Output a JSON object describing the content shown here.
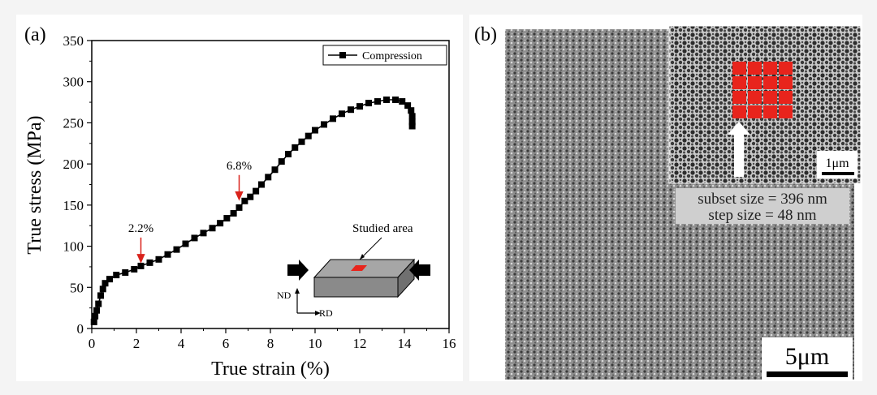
{
  "panel_a": {
    "label": "(a)",
    "legend": "Compression",
    "annotations": [
      {
        "text": "2.2%",
        "x": 2.2,
        "y": 78
      },
      {
        "text": "6.8%",
        "x": 6.6,
        "y": 154
      }
    ],
    "inset": {
      "studied_area": "Studied area",
      "nd": "ND",
      "rd": "RD"
    }
  },
  "panel_b": {
    "label": "(b)",
    "subset_size": "subset size = 396 nm",
    "step_size": "step size = 48 nm",
    "scale_bar": "5μm",
    "inset_scale": "1μm",
    "colors": {
      "roi": "#e8241c",
      "arrow": "#ffffff"
    }
  },
  "chart_data": {
    "type": "line",
    "xlabel": "True strain (%)",
    "ylabel": "True stress (MPa)",
    "xlim": [
      0,
      16
    ],
    "ylim": [
      0,
      350
    ],
    "xticks": [
      0,
      2,
      4,
      6,
      8,
      10,
      12,
      14,
      16
    ],
    "yticks": [
      0,
      50,
      100,
      150,
      200,
      250,
      300,
      350
    ],
    "series": [
      {
        "name": "Compression",
        "marker": "square",
        "color": "#000000",
        "x": [
          0.1,
          0.15,
          0.22,
          0.3,
          0.4,
          0.5,
          0.6,
          0.8,
          1.1,
          1.5,
          1.9,
          2.2,
          2.6,
          3.0,
          3.4,
          3.8,
          4.2,
          4.6,
          5.0,
          5.4,
          5.75,
          6.05,
          6.35,
          6.6,
          6.85,
          7.1,
          7.35,
          7.6,
          7.9,
          8.2,
          8.5,
          8.8,
          9.1,
          9.4,
          9.7,
          10.0,
          10.4,
          10.8,
          11.2,
          11.6,
          12.0,
          12.4,
          12.8,
          13.2,
          13.6,
          13.9,
          14.15,
          14.3,
          14.35,
          14.35,
          14.35
        ],
        "y": [
          8,
          15,
          22,
          30,
          40,
          48,
          55,
          60,
          65,
          68,
          72,
          76,
          80,
          84,
          90,
          96,
          103,
          110,
          116,
          122,
          128,
          134,
          140,
          147,
          155,
          160,
          167,
          175,
          184,
          193,
          203,
          212,
          220,
          227,
          234,
          241,
          248,
          255,
          261,
          266,
          270,
          274,
          276,
          278,
          278,
          276,
          271,
          265,
          258,
          251,
          246
        ]
      }
    ]
  }
}
